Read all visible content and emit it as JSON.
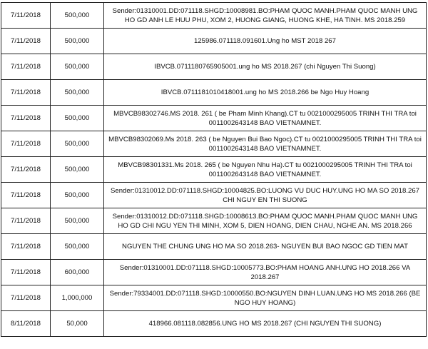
{
  "table": {
    "rows": [
      {
        "date": "7/11/2018",
        "amount": "500,000",
        "description": "Sender:01310001.DD:071118.SHGD:10008981.BO:PHAM QUOC MANH.PHAM QUOC MANH UNG HO GD ANH LE HUU PHU, XOM 2, HUONG GIANG, HUONG KHE, HA TINH. MS 2018.259"
      },
      {
        "date": "7/11/2018",
        "amount": "500,000",
        "description": "125986.071118.091601.Ung ho MST 2018 267"
      },
      {
        "date": "7/11/2018",
        "amount": "500,000",
        "description": "IBVCB.0711180765905001.ung ho MS 2018.267 (chi Nguyen Thi Suong)"
      },
      {
        "date": "7/11/2018",
        "amount": "500,000",
        "description": "IBVCB.0711181010418001.ung ho MS 2018.266 be Ngo Huy Hoang"
      },
      {
        "date": "7/11/2018",
        "amount": "500,000",
        "description": "MBVCB98302746.MS 2018. 261 ( be Pham Minh Khang).CT tu 0021000295005 TRINH THI TRA toi 0011002643148 BAO VIETNAMNET."
      },
      {
        "date": "7/11/2018",
        "amount": "500,000",
        "description": "MBVCB98302069.Ms 2018. 263 ( be Nguyen Bui Bao Ngoc).CT tu 0021000295005 TRINH THI TRA toi 0011002643148 BAO VIETNAMNET."
      },
      {
        "date": "7/11/2018",
        "amount": "500,000",
        "description": "MBVCB98301331.Ms 2018. 265 ( be Nguyen Nhu Ha).CT tu 0021000295005 TRINH THI TRA toi 0011002643148 BAO VIETNAMNET."
      },
      {
        "date": "7/11/2018",
        "amount": "500,000",
        "description": "Sender:01310012.DD:071118.SHGD:10004825.BO:LUONG VU DUC HUY.UNG HO MA SO 2018.267 CHI NGUY EN THI SUONG"
      },
      {
        "date": "7/11/2018",
        "amount": "500,000",
        "description": "Sender:01310012.DD:071118.SHGD:10008613.BO:PHAM QUOC MANH.PHAM QUOC MANH UNG HO GD CHI NGU YEN THI MINH, XOM 5, DIEN HOANG, DIEN CHAU, NGHE AN. MS 2018.266"
      },
      {
        "date": "7/11/2018",
        "amount": "500,000",
        "description": "NGUYEN THE CHUNG UNG HO MA SO 2018.263- NGUYEN BUI BAO NGOC GD TIEN MAT"
      },
      {
        "date": "7/11/2018",
        "amount": "600,000",
        "description": "Sender:01310001.DD:071118.SHGD:10005773.BO:PHAM HOANG ANH.UNG HO 2018.266 VA 2018.267"
      },
      {
        "date": "7/11/2018",
        "amount": "1,000,000",
        "description": "Sender:79334001.DD:071118.SHGD:10000550.BO:NGUYEN DINH LUAN.UNG HO MS 2018.266 (BE NGO HUY HOANG)"
      },
      {
        "date": "8/11/2018",
        "amount": "50,000",
        "description": "418966.081118.082856.UNG HO MS 2018.267 (CHI NGUYEN THI SUONG)"
      }
    ]
  }
}
